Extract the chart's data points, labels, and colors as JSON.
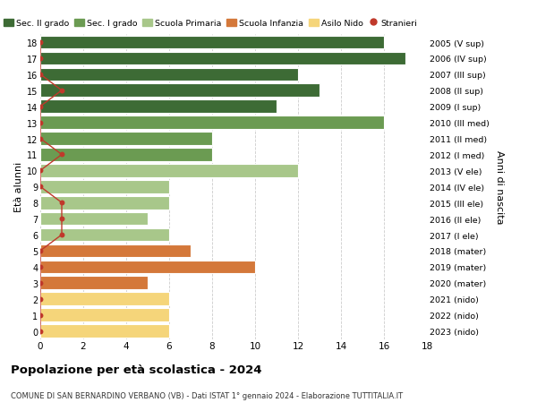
{
  "ages": [
    18,
    17,
    16,
    15,
    14,
    13,
    12,
    11,
    10,
    9,
    8,
    7,
    6,
    5,
    4,
    3,
    2,
    1,
    0
  ],
  "years": [
    "2005 (V sup)",
    "2006 (IV sup)",
    "2007 (III sup)",
    "2008 (II sup)",
    "2009 (I sup)",
    "2010 (III med)",
    "2011 (II med)",
    "2012 (I med)",
    "2013 (V ele)",
    "2014 (IV ele)",
    "2015 (III ele)",
    "2016 (II ele)",
    "2017 (I ele)",
    "2018 (mater)",
    "2019 (mater)",
    "2020 (mater)",
    "2021 (nido)",
    "2022 (nido)",
    "2023 (nido)"
  ],
  "values": [
    16,
    17,
    12,
    13,
    11,
    16,
    8,
    8,
    12,
    6,
    6,
    5,
    6,
    7,
    10,
    5,
    6,
    6,
    6
  ],
  "stranieri_x": [
    0,
    0,
    0,
    1,
    0,
    0,
    0,
    1,
    0,
    0,
    1,
    1,
    1,
    0,
    0,
    0,
    0,
    0,
    0
  ],
  "colors": {
    "sec2": "#3d6b35",
    "sec1": "#6b9b52",
    "primaria": "#a8c78a",
    "infanzia": "#d4783a",
    "nido": "#f5d57a",
    "stranieri": "#c0392b"
  },
  "bar_colors": [
    "#3d6b35",
    "#3d6b35",
    "#3d6b35",
    "#3d6b35",
    "#3d6b35",
    "#6b9b52",
    "#6b9b52",
    "#6b9b52",
    "#a8c78a",
    "#a8c78a",
    "#a8c78a",
    "#a8c78a",
    "#a8c78a",
    "#d4783a",
    "#d4783a",
    "#d4783a",
    "#f5d57a",
    "#f5d57a",
    "#f5d57a"
  ],
  "title": "Popolazione per età scolastica - 2024",
  "subtitle": "COMUNE DI SAN BERNARDINO VERBANO (VB) - Dati ISTAT 1° gennaio 2024 - Elaborazione TUTTITALIA.IT",
  "ylabel_left": "Età alunni",
  "ylabel_right": "Anni di nascita",
  "xlim": [
    0,
    18
  ],
  "ylim": [
    -0.5,
    18.5
  ],
  "xticks": [
    0,
    2,
    4,
    6,
    8,
    10,
    12,
    14,
    16,
    18
  ],
  "legend_labels": [
    "Sec. II grado",
    "Sec. I grado",
    "Scuola Primaria",
    "Scuola Infanzia",
    "Asilo Nido",
    "Stranieri"
  ],
  "legend_colors": [
    "#3d6b35",
    "#6b9b52",
    "#a8c78a",
    "#d4783a",
    "#f5d57a",
    "#c0392b"
  ],
  "bg_color": "#ffffff",
  "grid_color": "#cccccc"
}
